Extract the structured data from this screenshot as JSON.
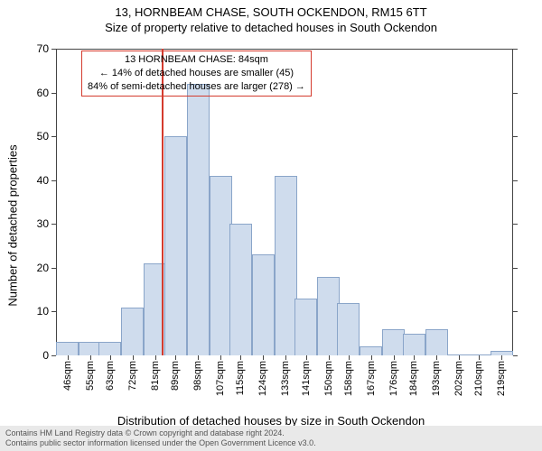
{
  "title": {
    "line1": "13, HORNBEAM CHASE, SOUTH OCKENDON, RM15 6TT",
    "line2": "Size of property relative to detached houses in South Ockendon",
    "fontsize": 13
  },
  "chart": {
    "type": "histogram",
    "bar_fill": "#cfdced",
    "bar_stroke": "#8aa5c9",
    "marker_color": "#d43b2e",
    "marker_sqm": 84,
    "categories": [
      "46sqm",
      "55sqm",
      "63sqm",
      "72sqm",
      "81sqm",
      "89sqm",
      "98sqm",
      "107sqm",
      "115sqm",
      "124sqm",
      "133sqm",
      "141sqm",
      "150sqm",
      "158sqm",
      "167sqm",
      "176sqm",
      "184sqm",
      "193sqm",
      "202sqm",
      "210sqm",
      "219sqm"
    ],
    "x_sqm": [
      46,
      55,
      63,
      72,
      81,
      89,
      98,
      107,
      115,
      124,
      133,
      141,
      150,
      158,
      167,
      176,
      184,
      193,
      202,
      210,
      219
    ],
    "values": [
      3,
      3,
      3,
      11,
      21,
      50,
      62,
      41,
      30,
      23,
      41,
      13,
      18,
      12,
      2,
      6,
      5,
      6,
      0,
      0,
      1
    ],
    "ylim": [
      0,
      70
    ],
    "ytick_step": 10,
    "ylabel": "Number of detached properties",
    "xlabel": "Distribution of detached houses by size in South Ockendon",
    "label_fontsize": 13
  },
  "callout": {
    "line1": "13 HORNBEAM CHASE: 84sqm",
    "line2": "← 14% of detached houses are smaller (45)",
    "line3": "84% of semi-detached houses are larger (278) →",
    "border_color": "#d43b2e"
  },
  "footer": {
    "line1": "Contains HM Land Registry data © Crown copyright and database right 2024.",
    "line2": "Contains public sector information licensed under the Open Government Licence v3.0."
  }
}
